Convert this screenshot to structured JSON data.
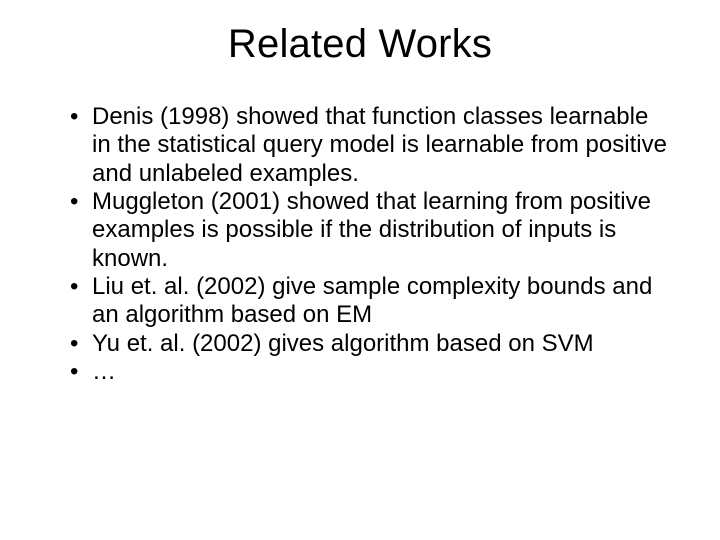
{
  "slide": {
    "title": "Related Works",
    "title_fontsize": 40,
    "body_fontsize": 24,
    "background_color": "#ffffff",
    "text_color": "#000000",
    "font_family": "Arial",
    "bullets": [
      {
        "text": "Denis (1998) showed that function classes learnable in the statistical query model is learnable from positive and unlabeled examples."
      },
      {
        "text": "Muggleton (2001) showed that learning from positive examples is possible if the distribution of inputs is known."
      },
      {
        "text": "Liu et. al. (2002) give sample complexity bounds and an algorithm based on EM"
      },
      {
        "text": "Yu et. al. (2002) gives algorithm based on SVM"
      },
      {
        "text": "…"
      }
    ]
  }
}
